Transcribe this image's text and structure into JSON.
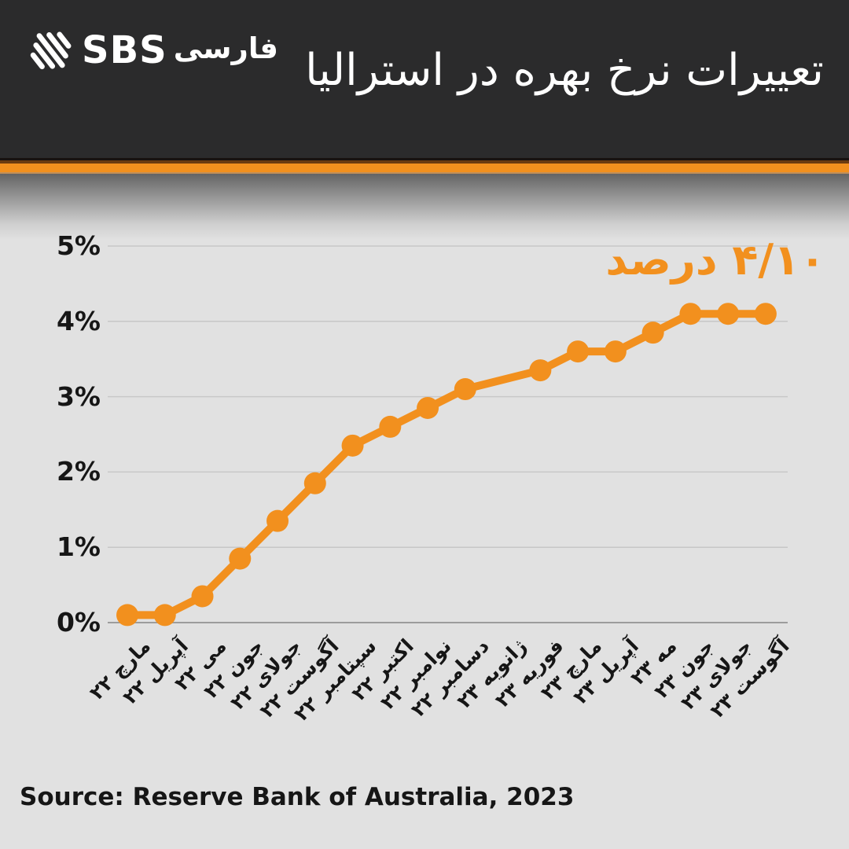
{
  "header": {
    "brand": {
      "sbs": "SBS",
      "farsi": "فارسی"
    },
    "title": "تعییرات نرخ بهره در استرالیا"
  },
  "chart_data": {
    "type": "line",
    "title": "تعییرات نرخ بهره در استرالیا",
    "categories": [
      "مارچ ۲۲",
      "آپریل ۲۲",
      "می ۲۲",
      "جون ۲۲",
      "جولای ۲۲",
      "آگوست ۲۲",
      "سپتامبر ۲۲",
      "اکتبر ۲۲",
      "نوامبر ۲۲",
      "دسامبر ۲۲",
      "ژانویه ۲۳",
      "فوریه ۲۳",
      "مارچ ۲۳",
      "آپریل ۲۳",
      "مه ۲۳",
      "جون ۲۳",
      "جولای ۲۳",
      "آگوست ۲۳"
    ],
    "values": [
      0.1,
      0.1,
      0.35,
      0.85,
      1.35,
      1.85,
      2.35,
      2.6,
      2.85,
      3.1,
      null,
      3.35,
      3.6,
      3.6,
      3.85,
      4.1,
      4.1,
      4.1
    ],
    "y_ticks": [
      "0%",
      "1%",
      "2%",
      "3%",
      "4%",
      "5%"
    ],
    "ylim": [
      0,
      5
    ],
    "grid": true,
    "legend_position": "none",
    "annotation": "۴/۱۰ درصد",
    "line_color": "#f2901e",
    "grid_color": "#c7c7c7",
    "axis_color": "#9c9c9c"
  },
  "footer": {
    "source": "Source: Reserve Bank of Australia, 2023"
  },
  "colors": {
    "header_bg": "#2b2b2c",
    "accent_orange": "#f2901e",
    "chart_bg": "#e1e1e1",
    "text_dark": "#161616",
    "text_light": "#ffffff"
  }
}
